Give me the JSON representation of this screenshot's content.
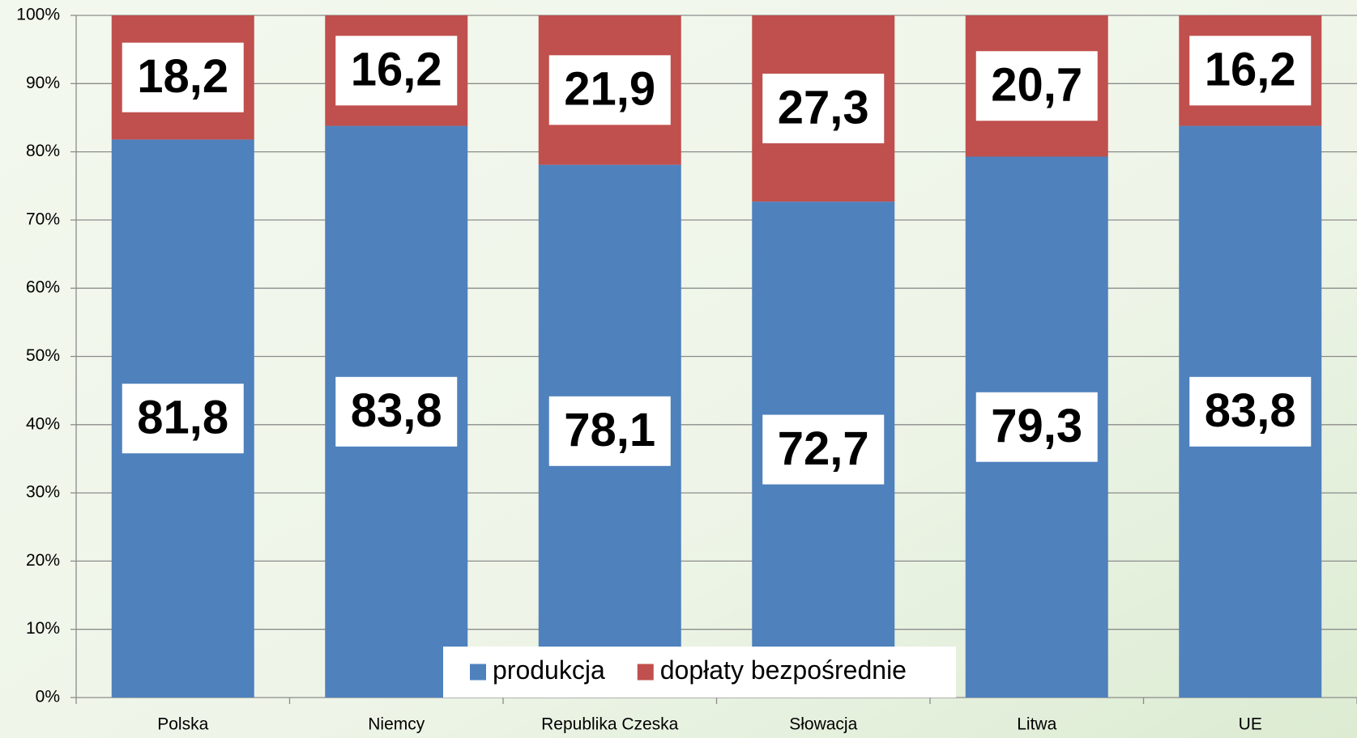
{
  "chart_data": {
    "type": "stacked_bar",
    "categories": [
      "Polska",
      "Niemcy",
      "Republika Czeska",
      "Słowacja",
      "Litwa",
      "UE"
    ],
    "series": [
      {
        "name": "produkcja",
        "color": "#4f81bd",
        "values": [
          81.8,
          83.8,
          78.1,
          72.7,
          79.3,
          83.8
        ],
        "value_labels": [
          "81,8",
          "83,8",
          "78,1",
          "72,7",
          "79,3",
          "83,8"
        ]
      },
      {
        "name": "dopłaty bezpośrednie",
        "color": "#c0504d",
        "values": [
          18.2,
          16.2,
          21.9,
          27.3,
          20.7,
          16.2
        ],
        "value_labels": [
          "18,2",
          "16,2",
          "21,9",
          "27,3",
          "20,7",
          "16,2"
        ]
      }
    ],
    "ylim": [
      0,
      100
    ],
    "yticks": [
      {
        "value": 0,
        "label": "0%"
      },
      {
        "value": 10,
        "label": "10%"
      },
      {
        "value": 20,
        "label": "20%"
      },
      {
        "value": 30,
        "label": "30%"
      },
      {
        "value": 40,
        "label": "40%"
      },
      {
        "value": 50,
        "label": "50%"
      },
      {
        "value": 60,
        "label": "60%"
      },
      {
        "value": 70,
        "label": "70%"
      },
      {
        "value": 80,
        "label": "80%"
      },
      {
        "value": 90,
        "label": "90%"
      },
      {
        "value": 100,
        "label": "100%"
      }
    ],
    "grid": true,
    "legend": "bottom"
  }
}
